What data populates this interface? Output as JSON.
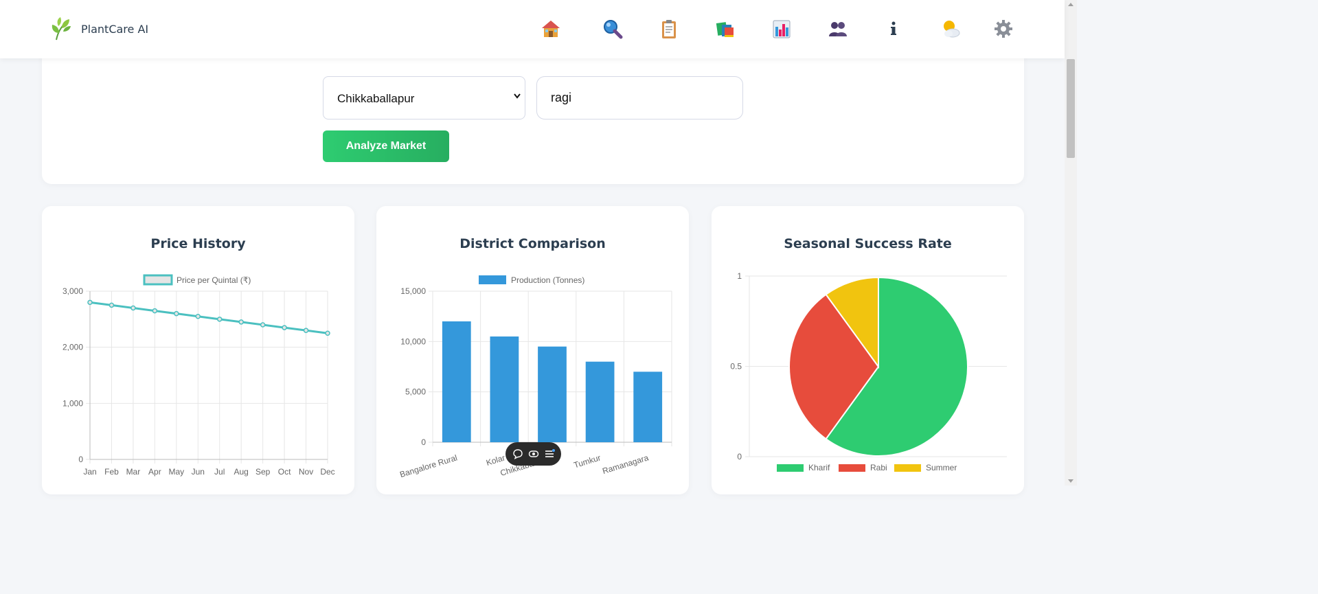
{
  "header": {
    "brand": "PlantCare AI",
    "nav": [
      {
        "icon": "house-icon",
        "glyph": "🏠"
      },
      {
        "icon": "magnifier-icon",
        "glyph": "🔍"
      },
      {
        "icon": "clipboard-icon",
        "glyph": "📋"
      },
      {
        "icon": "books-icon",
        "glyph": "📚"
      },
      {
        "icon": "bar-chart-icon",
        "glyph": "📊"
      },
      {
        "icon": "people-icon",
        "glyph": "👥"
      },
      {
        "icon": "info-icon",
        "glyph": "ℹ"
      },
      {
        "icon": "sun-cloud-icon",
        "glyph": "⛅"
      },
      {
        "icon": "gear-icon",
        "glyph": "⚙"
      }
    ]
  },
  "form": {
    "district": "Chikkaballapur",
    "crop": "ragi",
    "analyze_label": "Analyze Market"
  },
  "charts": {
    "price": {
      "title": "Price History",
      "legend": "Price per Quintal (₹)",
      "color": "#4bc0c0"
    },
    "district": {
      "title": "District Comparison",
      "legend": "Production (Tonnes)",
      "color": "#3498db"
    },
    "season": {
      "title": "Seasonal Success Rate"
    }
  },
  "chart_data": [
    {
      "type": "line",
      "title": "Price History",
      "categories": [
        "Jan",
        "Feb",
        "Mar",
        "Apr",
        "May",
        "Jun",
        "Jul",
        "Aug",
        "Sep",
        "Oct",
        "Nov",
        "Dec"
      ],
      "series": [
        {
          "name": "Price per Quintal (₹)",
          "values": [
            2800,
            2750,
            2700,
            2650,
            2600,
            2550,
            2500,
            2450,
            2400,
            2350,
            2300,
            2250
          ]
        }
      ],
      "yticks": [
        "0",
        "1,000",
        "2,000",
        "3,000"
      ],
      "ylim": [
        0,
        3000
      ],
      "grid": true,
      "legend": "top"
    },
    {
      "type": "bar",
      "title": "District Comparison",
      "categories": [
        "Bangalore Rural",
        "Kolar",
        "Chikkaballapur",
        "Tumkur",
        "Ramanagara"
      ],
      "series": [
        {
          "name": "Production (Tonnes)",
          "values": [
            12000,
            10500,
            9500,
            8000,
            7000
          ]
        }
      ],
      "yticks": [
        "0",
        "5,000",
        "10,000",
        "15,000"
      ],
      "ylim": [
        0,
        15000
      ],
      "grid": true,
      "legend": "top"
    },
    {
      "type": "pie",
      "title": "Seasonal Success Rate",
      "categories": [
        "Kharif",
        "Rabi",
        "Summer"
      ],
      "values": [
        60,
        30,
        10
      ],
      "colors": [
        "#2ecc71",
        "#e74c3c",
        "#f1c40f"
      ],
      "yticks": [
        "0",
        "0.5",
        "1"
      ],
      "legend": "bottom"
    }
  ]
}
